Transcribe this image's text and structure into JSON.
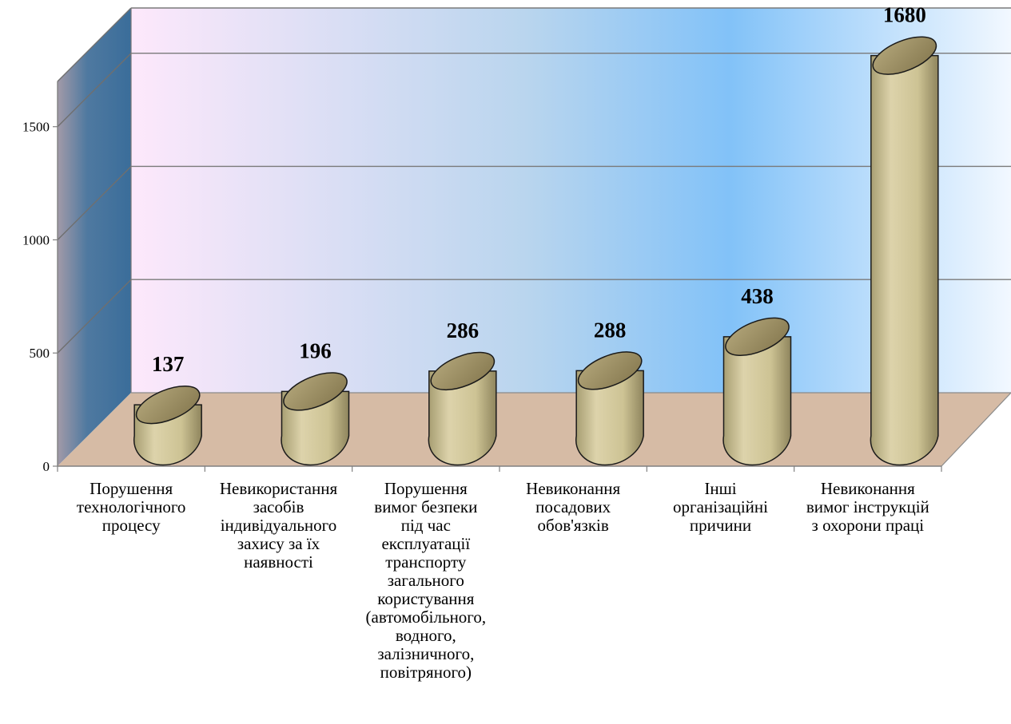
{
  "chart_data": {
    "type": "bar",
    "style": "3d-cylinder",
    "categories": [
      [
        "Порушення",
        "технологічного",
        "процесу"
      ],
      [
        "Невикористання",
        "засобів",
        "індивідуального",
        "захису  за  їх",
        "наявності"
      ],
      [
        "Порушення",
        "вимог безпеки",
        "під час",
        "експлуатації",
        "транспорту",
        "загального",
        "користування",
        "(автомобільного,",
        "водного,",
        "залізничного,",
        "повітряного)"
      ],
      [
        "Невиконання",
        "посадових",
        "обов'язків"
      ],
      [
        "Інші",
        "організаційні",
        "причини"
      ],
      [
        "Невиконання",
        "вимог інструкцій",
        "з охорони  праці"
      ]
    ],
    "values": [
      137,
      196,
      286,
      288,
      438,
      1680
    ],
    "data_labels": [
      "137",
      "196",
      "286",
      "288",
      "438",
      "1680"
    ],
    "y_ticks": [
      0,
      500,
      1000,
      1500
    ],
    "y_tick_labels": [
      "0",
      "500",
      "1000",
      "1500"
    ],
    "ylim": [
      0,
      1700
    ],
    "grid": true,
    "legend": "none",
    "colors": {
      "bar_body": "#cfc59a",
      "bar_top": "#9a8c62",
      "floor": "#d6bba5",
      "back_wall_left": "#fbe8fa",
      "back_wall_mid": "#86c3f7",
      "back_wall_right": "#eef7ff",
      "side_wall_light": "#95a0b5",
      "side_wall_dark": "#3d6f98",
      "gridline": "#7f7f7f"
    }
  }
}
